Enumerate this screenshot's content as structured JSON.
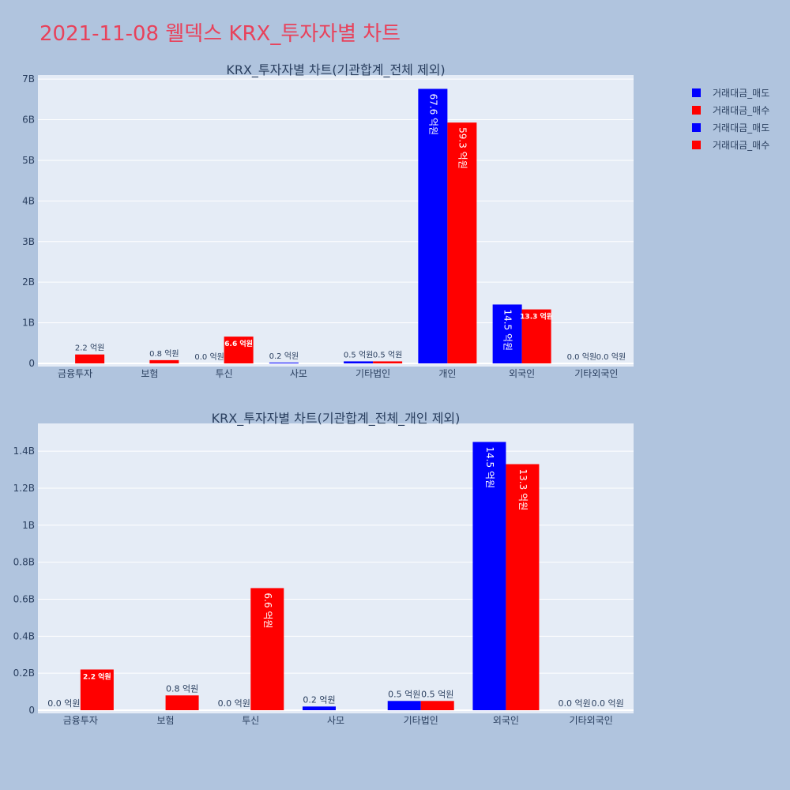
{
  "page_title": "2021-11-08 웰덱스 KRX_투자자별 차트",
  "legend": [
    {
      "label": "거래대금_매도",
      "color": "#0000ff"
    },
    {
      "label": "거래대금_매수",
      "color": "#ff0000"
    },
    {
      "label": "거래대금_매도",
      "color": "#0000ff"
    },
    {
      "label": "거래대금_매수",
      "color": "#ff0000"
    }
  ],
  "chart_data": [
    {
      "type": "bar",
      "title": "KRX_투자자별 차트(기관합계_전체 제외)",
      "categories": [
        "금융투자",
        "보험",
        "투신",
        "사모",
        "기타법인",
        "개인",
        "외국인",
        "기타외국인"
      ],
      "ylim": [
        0,
        7.1
      ],
      "y_ticks": [
        {
          "v": 0,
          "label": "0"
        },
        {
          "v": 1,
          "label": "1B"
        },
        {
          "v": 2,
          "label": "2B"
        },
        {
          "v": 3,
          "label": "3B"
        },
        {
          "v": 4,
          "label": "4B"
        },
        {
          "v": 5,
          "label": "5B"
        },
        {
          "v": 6,
          "label": "6B"
        },
        {
          "v": 7,
          "label": "7B"
        }
      ],
      "series": [
        {
          "name": "거래대금_매도",
          "color": "#0000ff",
          "values": [
            0,
            null,
            0.0,
            0.02,
            0.05,
            6.76,
            1.45,
            0.0
          ],
          "labels": [
            "",
            "",
            "0.0 억원",
            "0.2 억원",
            "0.5 억원",
            "67.6 억원",
            "14.5 억원",
            "0.0 억원"
          ]
        },
        {
          "name": "거래대금_매수",
          "color": "#ff0000",
          "values": [
            0.22,
            0.08,
            0.66,
            null,
            0.05,
            5.93,
            1.33,
            0.0
          ],
          "labels": [
            "2.2 억원",
            "0.8 억원",
            "6.6 억원",
            "",
            "0.5 억원",
            "59.3 억원",
            "13.3 억원",
            "0.0 억원"
          ]
        }
      ]
    },
    {
      "type": "bar",
      "title": "KRX_투자자별 차트(기관합계_전체_개인 제외)",
      "categories": [
        "금융투자",
        "보험",
        "투신",
        "사모",
        "기타법인",
        "외국인",
        "기타외국인"
      ],
      "ylim": [
        0,
        1.55
      ],
      "y_ticks": [
        {
          "v": 0,
          "label": "0"
        },
        {
          "v": 0.2,
          "label": "0.2B"
        },
        {
          "v": 0.4,
          "label": "0.4B"
        },
        {
          "v": 0.6,
          "label": "0.6B"
        },
        {
          "v": 0.8,
          "label": "0.8B"
        },
        {
          "v": 1.0,
          "label": "1B"
        },
        {
          "v": 1.2,
          "label": "1.2B"
        },
        {
          "v": 1.4,
          "label": "1.4B"
        }
      ],
      "series": [
        {
          "name": "거래대금_매도",
          "color": "#0000ff",
          "values": [
            0.0,
            null,
            0.0,
            0.02,
            0.05,
            1.45,
            0.0
          ],
          "labels": [
            "0.0 억원",
            "",
            "0.0 억원",
            "0.2 억원",
            "0.5 억원",
            "14.5 억원",
            "0.0 억원"
          ]
        },
        {
          "name": "거래대금_매수",
          "color": "#ff0000",
          "values": [
            0.22,
            0.08,
            0.66,
            null,
            0.05,
            1.33,
            0.0
          ],
          "labels": [
            "2.2 억원",
            "0.8 억원",
            "6.6 억원",
            "",
            "0.5 억원",
            "13.3 억원",
            "0.0 억원"
          ]
        }
      ]
    }
  ]
}
